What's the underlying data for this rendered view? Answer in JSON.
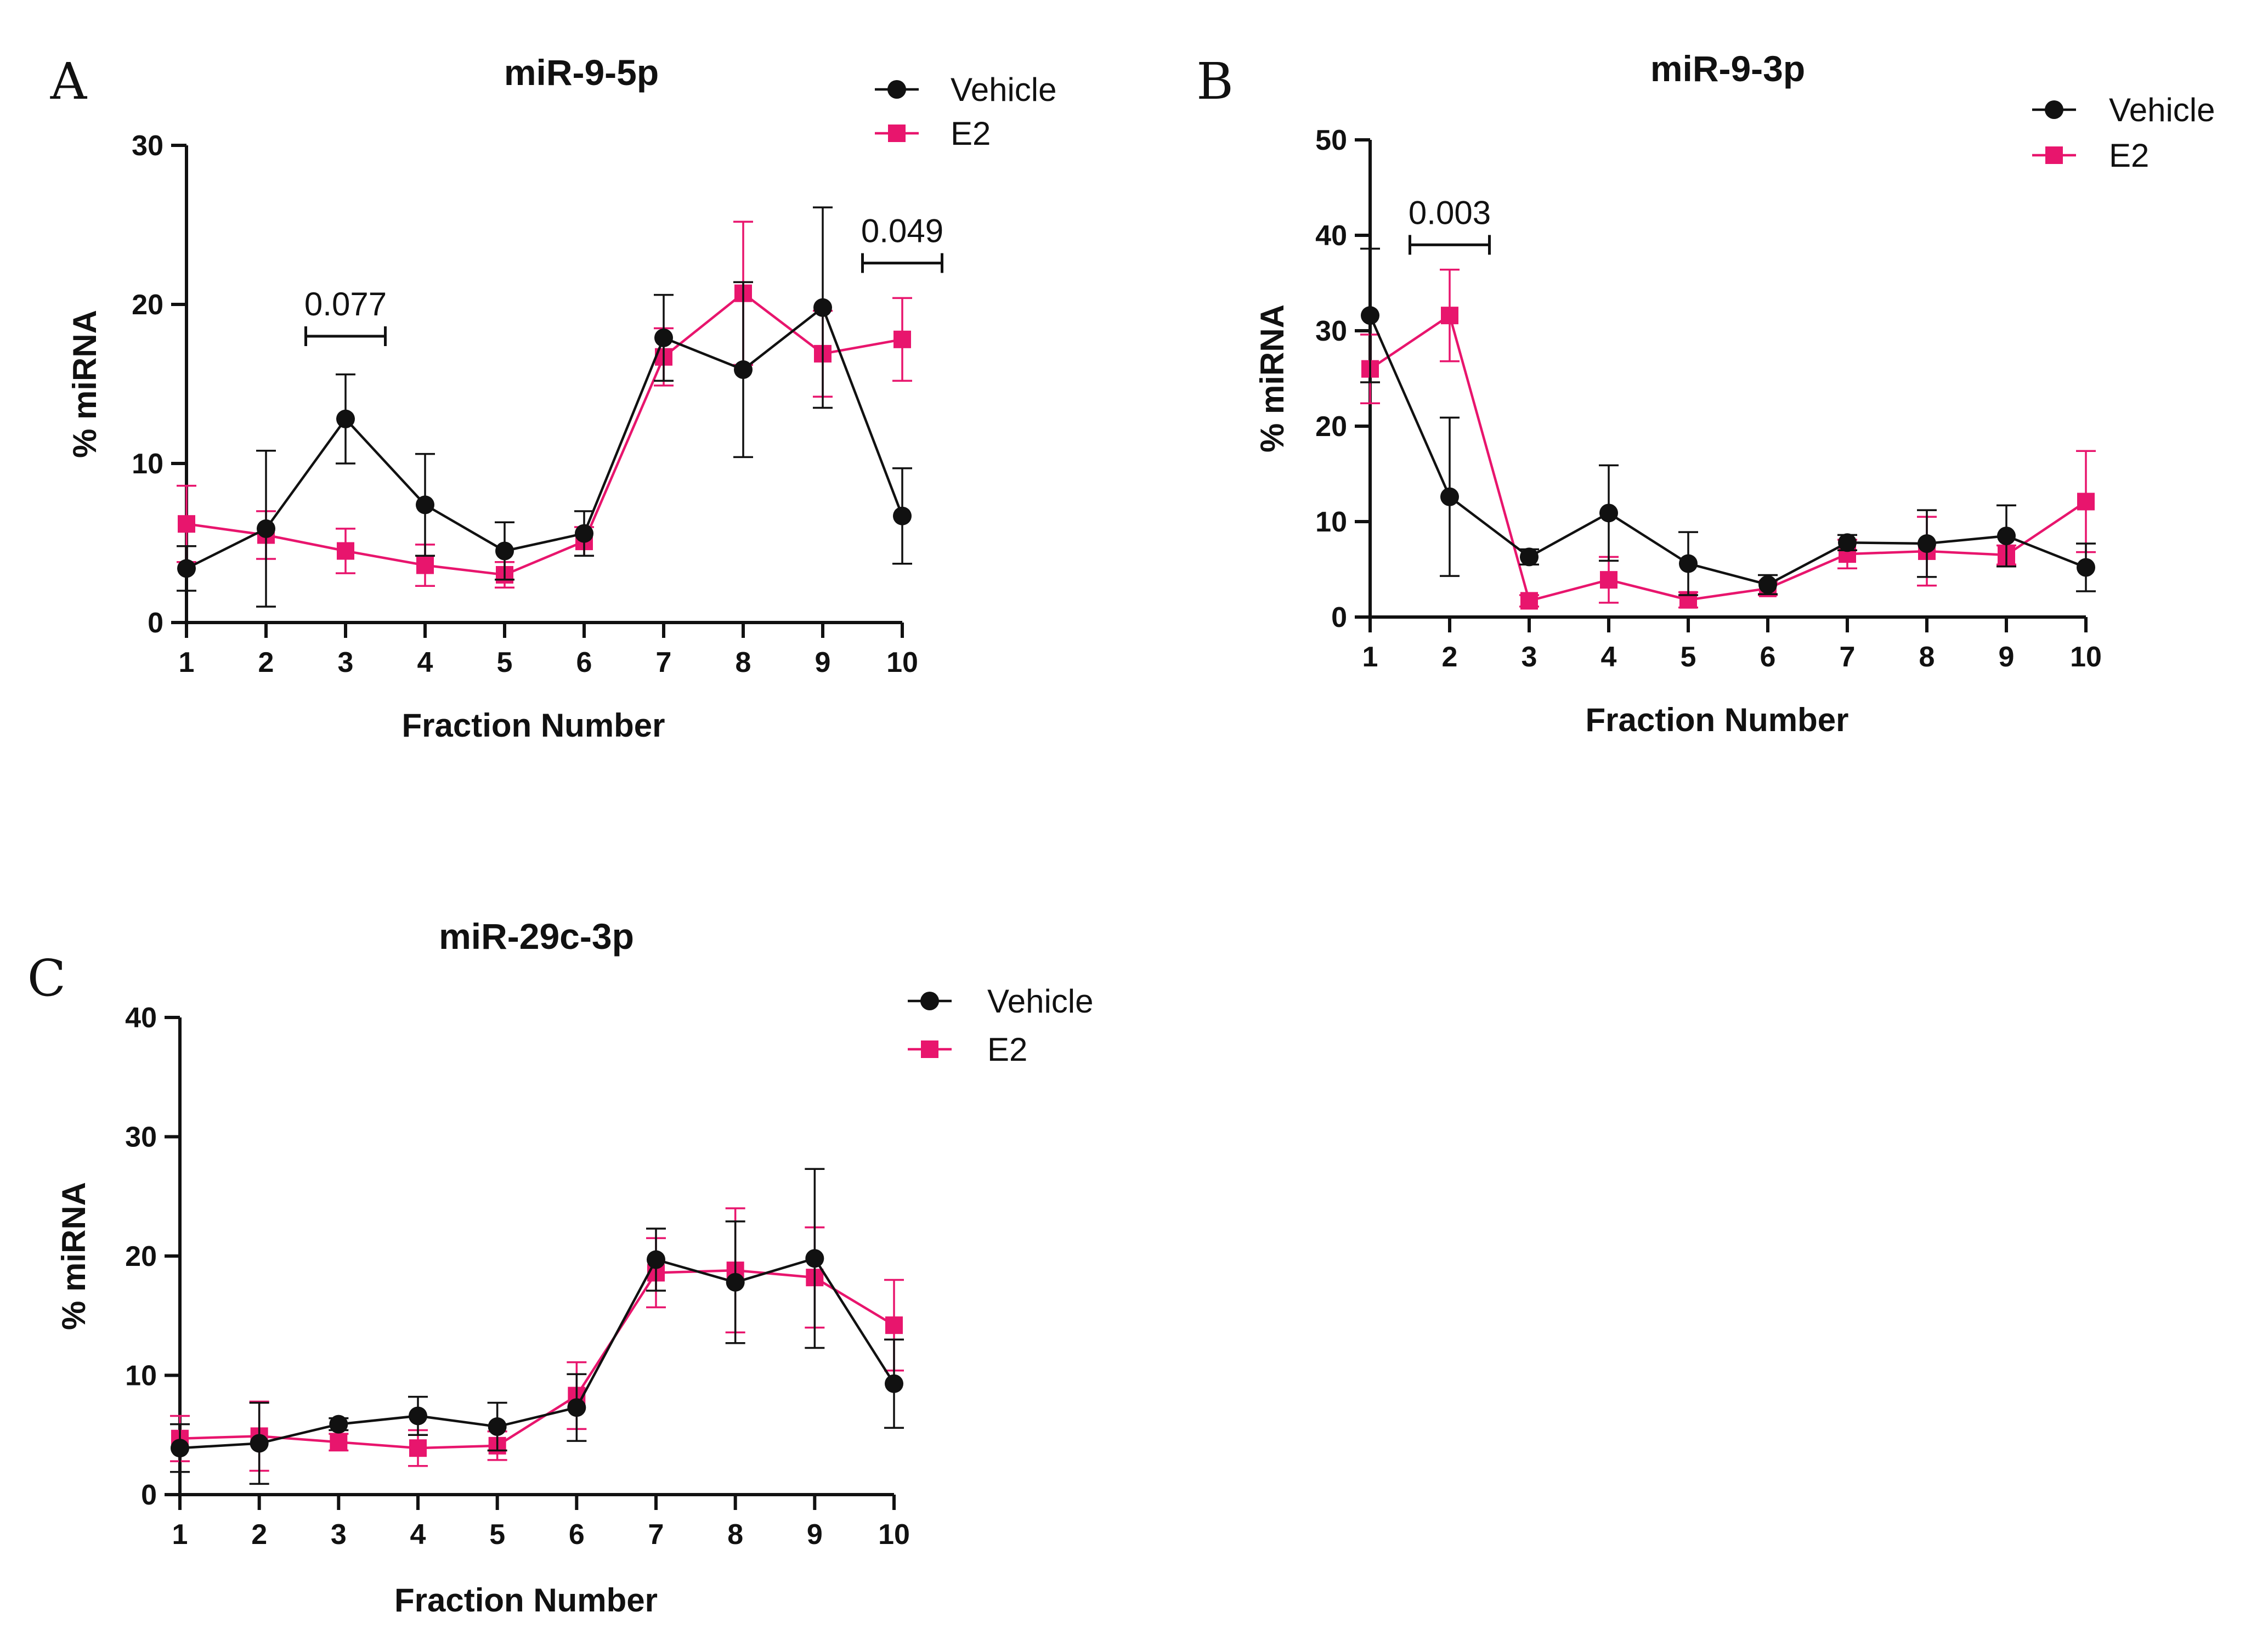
{
  "colors": {
    "vehicle": "#111111",
    "e2": "#e8156d",
    "axis": "#111111"
  },
  "chart_data": [
    {
      "type": "line",
      "panel_label": "A",
      "title": "miR-9-5p",
      "xlabel": "Fraction  Number",
      "ylabel": "% miRNA",
      "x": [
        1,
        2,
        3,
        4,
        5,
        6,
        7,
        8,
        9,
        10
      ],
      "ylim": [
        0,
        30
      ],
      "yticks": [
        0,
        10,
        20,
        30
      ],
      "legend_position": "top-right",
      "series": [
        {
          "name": "Vehicle",
          "marker": "circle",
          "values": [
            3.4,
            5.9,
            12.8,
            7.4,
            4.5,
            5.6,
            17.9,
            15.9,
            19.8,
            6.7
          ],
          "errors": [
            1.4,
            4.9,
            2.8,
            3.2,
            1.8,
            1.4,
            2.7,
            5.5,
            6.3,
            3.0
          ]
        },
        {
          "name": "E2",
          "marker": "square",
          "values": [
            6.2,
            5.5,
            4.5,
            3.6,
            3.0,
            5.1,
            16.7,
            20.7,
            16.9,
            17.8
          ],
          "errors": [
            2.4,
            1.5,
            1.4,
            1.3,
            0.8,
            0.9,
            1.8,
            4.5,
            2.7,
            2.6
          ]
        }
      ],
      "annotations": [
        {
          "text": "0.077",
          "x_from": 2.5,
          "x_to": 3.5,
          "y": 18
        },
        {
          "text": "0.049",
          "x_from": 9.5,
          "x_to": 10.5,
          "y": 22.6
        }
      ]
    },
    {
      "type": "line",
      "panel_label": "B",
      "title": "miR-9-3p",
      "xlabel": "Fraction  Number",
      "ylabel": "% miRNA",
      "x": [
        1,
        2,
        3,
        4,
        5,
        6,
        7,
        8,
        9,
        10
      ],
      "ylim": [
        0,
        50
      ],
      "yticks": [
        0,
        10,
        20,
        30,
        40,
        50
      ],
      "legend_position": "top-right",
      "series": [
        {
          "name": "Vehicle",
          "marker": "circle",
          "values": [
            31.6,
            12.6,
            6.3,
            10.9,
            5.6,
            3.4,
            7.8,
            7.7,
            8.5,
            5.2
          ],
          "errors": [
            7.0,
            8.3,
            0.8,
            5.0,
            3.3,
            1.0,
            0.8,
            3.5,
            3.2,
            2.5
          ]
        },
        {
          "name": "E2",
          "marker": "square",
          "values": [
            26.0,
            31.6,
            1.7,
            3.9,
            1.8,
            3.0,
            6.6,
            6.9,
            6.5,
            12.1
          ],
          "errors": [
            3.6,
            4.8,
            0.6,
            2.4,
            0.8,
            0.7,
            1.5,
            3.6,
            1.0,
            5.3
          ]
        }
      ],
      "annotations": [
        {
          "text": "0.003",
          "x_from": 1.5,
          "x_to": 2.5,
          "y": 39
        }
      ]
    },
    {
      "type": "line",
      "panel_label": "C",
      "title": "miR-29c-3p",
      "xlabel": "Fraction Number",
      "ylabel": "% miRNA",
      "x": [
        1,
        2,
        3,
        4,
        5,
        6,
        7,
        8,
        9,
        10
      ],
      "ylim": [
        0,
        40
      ],
      "yticks": [
        0,
        10,
        20,
        30,
        40
      ],
      "legend_position": "top-right",
      "series": [
        {
          "name": "Vehicle",
          "marker": "circle",
          "values": [
            3.9,
            4.3,
            5.9,
            6.6,
            5.7,
            7.3,
            19.7,
            17.8,
            19.8,
            9.3
          ],
          "errors": [
            2.0,
            3.4,
            0.5,
            1.6,
            2.0,
            2.8,
            2.6,
            5.1,
            7.5,
            3.7
          ]
        },
        {
          "name": "E2",
          "marker": "square",
          "values": [
            4.7,
            4.9,
            4.4,
            3.9,
            4.1,
            8.3,
            18.6,
            18.8,
            18.2,
            14.2
          ],
          "errors": [
            1.9,
            2.9,
            0.7,
            1.5,
            1.2,
            2.8,
            2.9,
            5.2,
            4.2,
            3.8
          ]
        }
      ],
      "annotations": []
    }
  ]
}
